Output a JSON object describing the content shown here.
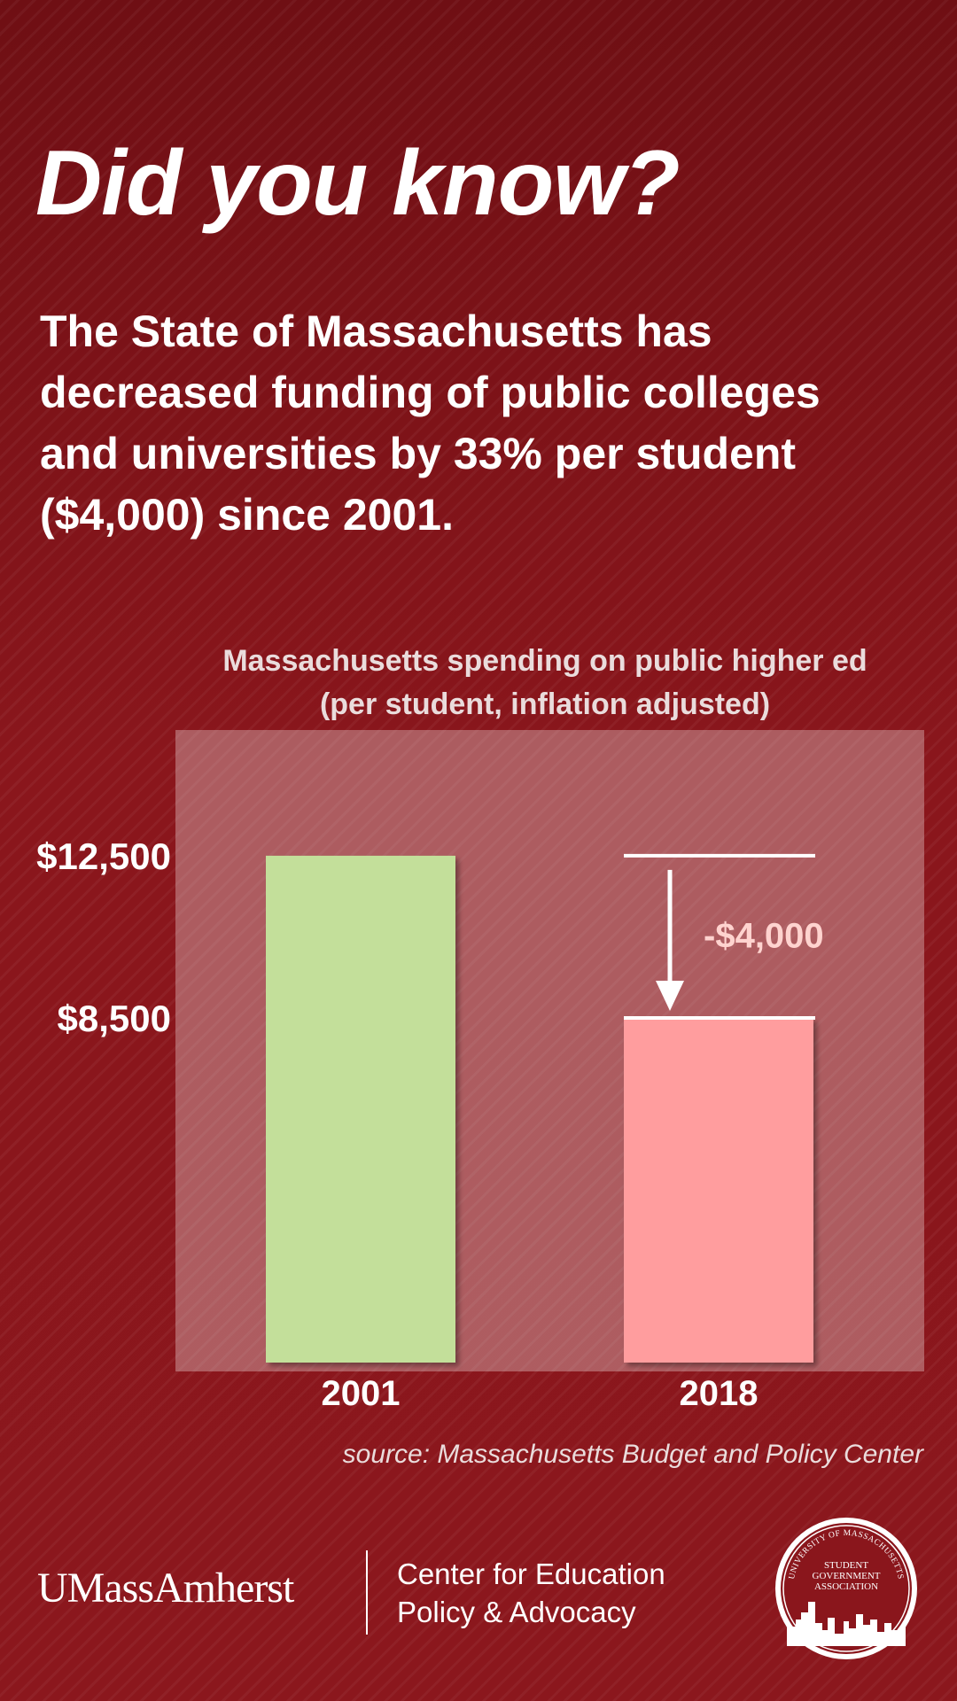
{
  "headline": "Did you know?",
  "intro": "The State of Massachusetts has decreased funding of public colleges and universities by 33% per student ($4,000) since 2001.",
  "chart_data": {
    "type": "bar",
    "title": "Massachusetts spending on public higher ed",
    "subtitle": "(per student, inflation adjusted)",
    "categories": [
      "2001",
      "2018"
    ],
    "values": [
      12500,
      8500
    ],
    "y_tick_labels": [
      "$12,500",
      "$8,500"
    ],
    "ylim": [
      0,
      15600
    ],
    "bar_colors": [
      "#c3df9a",
      "#ff9d9e"
    ],
    "annotation": {
      "label": "-$4,000",
      "from": 12500,
      "to": 8500,
      "color": "#ffd3cf"
    }
  },
  "source": "source: Massachusetts Budget and Policy Center",
  "footer": {
    "umass_logo_text": "UMassAmherst",
    "center_name_line1": "Center for Education",
    "center_name_line2": "Policy & Advocacy",
    "seal_ring_text": "UNIVERSITY OF MASSACHUSETTS",
    "seal_line1": "STUDENT",
    "seal_line2": "GOVERNMENT",
    "seal_line3": "ASSOCIATION"
  }
}
